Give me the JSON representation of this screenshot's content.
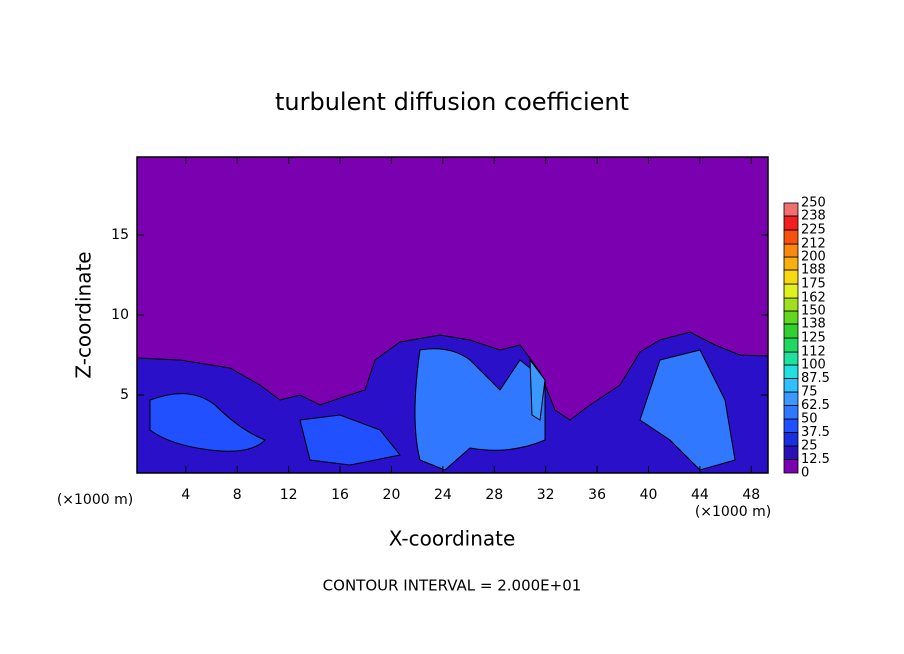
{
  "chart_data": {
    "type": "heatmap",
    "title": "turbulent diffusion coefficient",
    "xlabel": "X-coordinate",
    "ylabel": "Z-coordinate",
    "x_unit_label": "(×1000 m)",
    "annotation": "CONTOUR INTERVAL = 2.000E+01",
    "xlim": [
      0.2,
      49.3
    ],
    "xticks": [
      4,
      8,
      12,
      16,
      20,
      24,
      28,
      32,
      36,
      40,
      44,
      48
    ],
    "ylim": [
      0.125,
      19.875
    ],
    "yticks": [
      5,
      10,
      15
    ],
    "colorbar": {
      "levels": [
        0,
        12.5,
        25,
        37.5,
        50,
        62.5,
        75,
        87.5,
        100,
        112,
        125,
        138,
        150,
        162,
        175,
        188,
        200,
        212,
        225,
        238,
        250
      ],
      "colors": [
        "#7a00b0",
        "#2a10b8",
        "#1a30e0",
        "#2050ff",
        "#2f78ff",
        "#3a98ff",
        "#30c0ff",
        "#20e0e0",
        "#20e0a0",
        "#20d860",
        "#30d030",
        "#60d820",
        "#a0e020",
        "#e0f020",
        "#f8d810",
        "#f8b010",
        "#f88810",
        "#f85010",
        "#f02020",
        "#f07070"
      ]
    }
  }
}
